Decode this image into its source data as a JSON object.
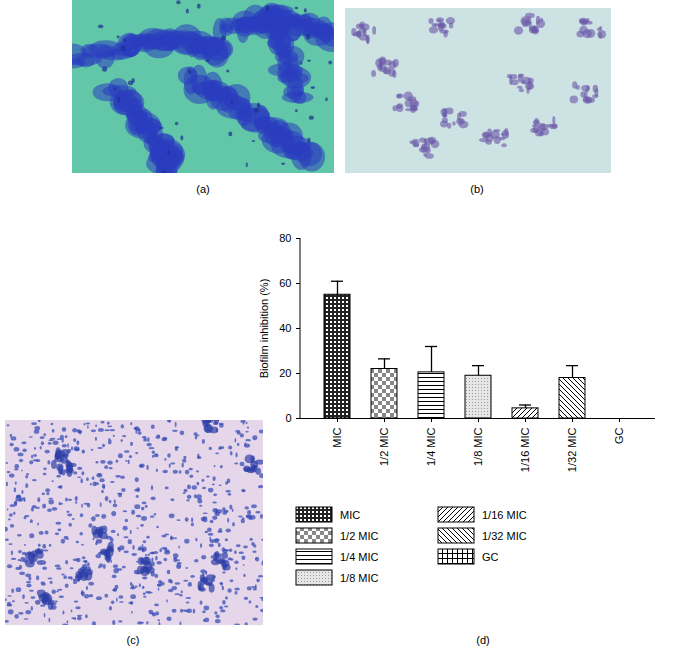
{
  "panel_labels": [
    "(a)",
    "(b)",
    "(c)",
    "(d)"
  ],
  "chart_data": {
    "type": "bar",
    "y_label": "Biofilm inhibition (%)",
    "categories": [
      "MIC",
      "1/2 MIC",
      "1/4 MIC",
      "1/8 MIC",
      "1/16 MIC",
      "1/32 MIC",
      "GC"
    ],
    "values": [
      55,
      22,
      20.5,
      19,
      4.5,
      18,
      0
    ],
    "errors": [
      6,
      4.5,
      11.5,
      4.5,
      1.5,
      5.5,
      0
    ],
    "color": "#000000",
    "ylim": [
      0,
      80
    ],
    "yticks": [
      0,
      20,
      40,
      60,
      80
    ],
    "legend": "bottom"
  }
}
